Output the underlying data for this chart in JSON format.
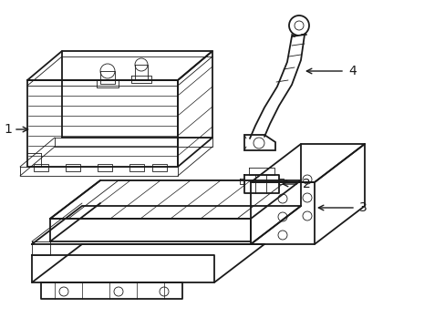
{
  "background_color": "#ffffff",
  "line_color": "#1a1a1a",
  "lw_main": 1.3,
  "lw_thin": 0.6,
  "lw_detail": 0.5,
  "label_fontsize": 10,
  "figsize": [
    4.89,
    3.6
  ],
  "dpi": 100
}
